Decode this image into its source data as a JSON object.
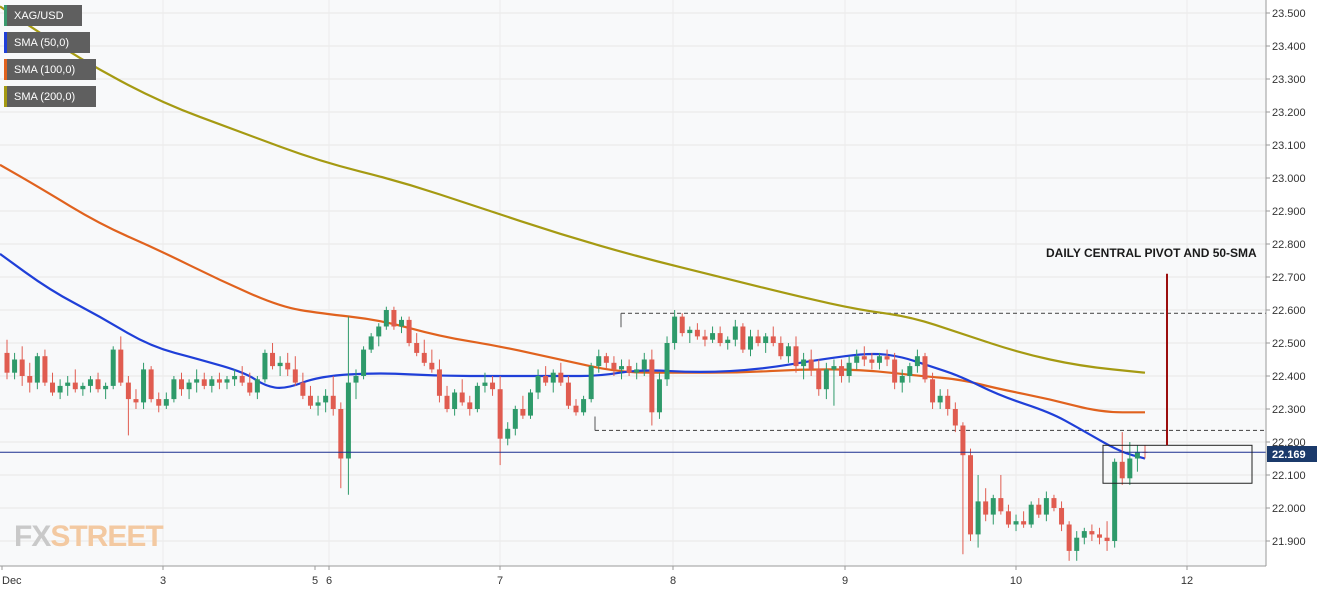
{
  "legend": {
    "symbol": {
      "label": "XAG/USD",
      "color": "#3a9a6e"
    },
    "sma50": {
      "label": "SMA (50,0)",
      "color": "#1f3fd8"
    },
    "sma100": {
      "label": "SMA (100,0)",
      "color": "#e0621e"
    },
    "sma200": {
      "label": "SMA (200,0)",
      "color": "#a59a12"
    }
  },
  "annotation": "DAILY CENTRAL PIVOT AND 50-SMA",
  "current_price": "22.169",
  "watermark": {
    "part1": "FX",
    "part2": "STREET"
  },
  "colors": {
    "up": "#2e9a6a",
    "down": "#e05c50",
    "price_line": "#1b2f8f",
    "price_tag": "#1b3a6b",
    "marker": "#9b0e0e"
  },
  "chart_data": {
    "type": "candlestick",
    "symbol": "XAG/USD",
    "timeframe": "1H",
    "x_ticks": [
      "Dec",
      "3",
      "5",
      "6",
      "7",
      "8",
      "9",
      "10",
      "12"
    ],
    "y_ticks": [
      "23.500",
      "23.400",
      "23.300",
      "23.200",
      "23.100",
      "23.000",
      "22.900",
      "22.800",
      "22.700",
      "22.600",
      "22.500",
      "22.400",
      "22.300",
      "22.200",
      "22.100",
      "22.000",
      "21.900"
    ],
    "ylim": [
      21.82,
      23.52
    ],
    "last_price": 22.169,
    "candles_ohlc": [
      [
        22.47,
        22.51,
        22.39,
        22.41
      ],
      [
        22.41,
        22.47,
        22.39,
        22.45
      ],
      [
        22.45,
        22.49,
        22.37,
        22.4
      ],
      [
        22.4,
        22.44,
        22.35,
        22.38
      ],
      [
        22.38,
        22.47,
        22.36,
        22.46
      ],
      [
        22.46,
        22.48,
        22.37,
        22.38
      ],
      [
        22.38,
        22.41,
        22.34,
        22.35
      ],
      [
        22.35,
        22.39,
        22.33,
        22.37
      ],
      [
        22.37,
        22.4,
        22.34,
        22.38
      ],
      [
        22.38,
        22.42,
        22.35,
        22.36
      ],
      [
        22.36,
        22.38,
        22.34,
        22.37
      ],
      [
        22.37,
        22.4,
        22.35,
        22.39
      ],
      [
        22.39,
        22.41,
        22.35,
        22.36
      ],
      [
        22.36,
        22.38,
        22.33,
        22.37
      ],
      [
        22.37,
        22.49,
        22.36,
        22.48
      ],
      [
        22.48,
        22.52,
        22.37,
        22.38
      ],
      [
        22.38,
        22.4,
        22.22,
        22.33
      ],
      [
        22.33,
        22.36,
        22.3,
        22.32
      ],
      [
        22.32,
        22.44,
        22.3,
        22.42
      ],
      [
        22.42,
        22.43,
        22.32,
        22.33
      ],
      [
        22.33,
        22.35,
        22.29,
        22.31
      ],
      [
        22.31,
        22.35,
        22.3,
        22.33
      ],
      [
        22.33,
        22.4,
        22.32,
        22.39
      ],
      [
        22.39,
        22.41,
        22.34,
        22.36
      ],
      [
        22.36,
        22.39,
        22.33,
        22.38
      ],
      [
        22.38,
        22.42,
        22.35,
        22.39
      ],
      [
        22.39,
        22.41,
        22.36,
        22.37
      ],
      [
        22.37,
        22.4,
        22.35,
        22.39
      ],
      [
        22.39,
        22.41,
        22.36,
        22.38
      ],
      [
        22.38,
        22.4,
        22.36,
        22.39
      ],
      [
        22.39,
        22.42,
        22.37,
        22.4
      ],
      [
        22.4,
        22.43,
        22.37,
        22.38
      ],
      [
        22.38,
        22.41,
        22.34,
        22.35
      ],
      [
        22.35,
        22.4,
        22.33,
        22.39
      ],
      [
        22.39,
        22.48,
        22.38,
        22.47
      ],
      [
        22.47,
        22.5,
        22.42,
        22.43
      ],
      [
        22.43,
        22.46,
        22.4,
        22.44
      ],
      [
        22.44,
        22.47,
        22.4,
        22.42
      ],
      [
        22.42,
        22.46,
        22.37,
        22.38
      ],
      [
        22.38,
        22.41,
        22.33,
        22.34
      ],
      [
        22.34,
        22.37,
        22.3,
        22.31
      ],
      [
        22.31,
        22.34,
        22.28,
        22.32
      ],
      [
        22.32,
        22.36,
        22.29,
        22.34
      ],
      [
        22.34,
        22.4,
        22.28,
        22.3
      ],
      [
        22.3,
        22.32,
        22.06,
        22.15
      ],
      [
        22.15,
        22.58,
        22.04,
        22.38
      ],
      [
        22.38,
        22.42,
        22.33,
        22.4
      ],
      [
        22.4,
        22.49,
        22.39,
        22.48
      ],
      [
        22.48,
        22.53,
        22.47,
        22.52
      ],
      [
        22.52,
        22.56,
        22.49,
        22.55
      ],
      [
        22.55,
        22.61,
        22.54,
        22.6
      ],
      [
        22.6,
        22.61,
        22.54,
        22.55
      ],
      [
        22.55,
        22.58,
        22.53,
        22.57
      ],
      [
        22.57,
        22.58,
        22.49,
        22.5
      ],
      [
        22.5,
        22.53,
        22.46,
        22.47
      ],
      [
        22.47,
        22.51,
        22.43,
        22.44
      ],
      [
        22.44,
        22.48,
        22.41,
        22.42
      ],
      [
        22.42,
        22.45,
        22.32,
        22.34
      ],
      [
        22.34,
        22.37,
        22.29,
        22.3
      ],
      [
        22.3,
        22.36,
        22.28,
        22.35
      ],
      [
        22.35,
        22.39,
        22.31,
        22.32
      ],
      [
        22.32,
        22.34,
        22.28,
        22.3
      ],
      [
        22.3,
        22.38,
        22.29,
        22.37
      ],
      [
        22.37,
        22.41,
        22.35,
        22.38
      ],
      [
        22.38,
        22.4,
        22.34,
        22.36
      ],
      [
        22.36,
        22.4,
        22.13,
        22.21
      ],
      [
        22.21,
        22.26,
        22.19,
        22.24
      ],
      [
        22.24,
        22.31,
        22.22,
        22.3
      ],
      [
        22.3,
        22.34,
        22.27,
        22.28
      ],
      [
        22.28,
        22.36,
        22.27,
        22.35
      ],
      [
        22.35,
        22.42,
        22.33,
        22.4
      ],
      [
        22.4,
        22.43,
        22.37,
        22.38
      ],
      [
        22.38,
        22.42,
        22.35,
        22.41
      ],
      [
        22.41,
        22.44,
        22.37,
        22.38
      ],
      [
        22.38,
        22.4,
        22.3,
        22.31
      ],
      [
        22.31,
        22.33,
        22.28,
        22.29
      ],
      [
        22.29,
        22.34,
        22.28,
        22.33
      ],
      [
        22.33,
        22.44,
        22.32,
        22.43
      ],
      [
        22.43,
        22.48,
        22.41,
        22.46
      ],
      [
        22.46,
        22.47,
        22.42,
        22.44
      ],
      [
        22.44,
        22.46,
        22.4,
        22.42
      ],
      [
        22.42,
        22.45,
        22.39,
        22.43
      ],
      [
        22.43,
        22.45,
        22.4,
        22.41
      ],
      [
        22.41,
        22.44,
        22.39,
        22.42
      ],
      [
        22.42,
        22.47,
        22.4,
        22.45
      ],
      [
        22.45,
        22.48,
        22.25,
        22.29
      ],
      [
        22.29,
        22.41,
        22.27,
        22.39
      ],
      [
        22.39,
        22.52,
        22.37,
        22.5
      ],
      [
        22.5,
        22.6,
        22.48,
        22.58
      ],
      [
        22.58,
        22.59,
        22.52,
        22.53
      ],
      [
        22.53,
        22.55,
        22.5,
        22.54
      ],
      [
        22.54,
        22.56,
        22.51,
        22.52
      ],
      [
        22.52,
        22.54,
        22.49,
        22.51
      ],
      [
        22.51,
        22.55,
        22.5,
        22.53
      ],
      [
        22.53,
        22.55,
        22.49,
        22.5
      ],
      [
        22.5,
        22.52,
        22.48,
        22.51
      ],
      [
        22.51,
        22.57,
        22.49,
        22.55
      ],
      [
        22.55,
        22.56,
        22.47,
        22.48
      ],
      [
        22.48,
        22.54,
        22.46,
        22.52
      ],
      [
        22.52,
        22.54,
        22.49,
        22.5
      ],
      [
        22.5,
        22.53,
        22.47,
        22.52
      ],
      [
        22.52,
        22.55,
        22.49,
        22.5
      ],
      [
        22.5,
        22.52,
        22.45,
        22.46
      ],
      [
        22.46,
        22.5,
        22.44,
        22.49
      ],
      [
        22.49,
        22.52,
        22.41,
        22.43
      ],
      [
        22.43,
        22.47,
        22.39,
        22.45
      ],
      [
        22.45,
        22.48,
        22.4,
        22.42
      ],
      [
        22.42,
        22.45,
        22.34,
        22.36
      ],
      [
        22.36,
        22.44,
        22.33,
        22.42
      ],
      [
        22.42,
        22.45,
        22.31,
        22.43
      ],
      [
        22.43,
        22.45,
        22.38,
        22.4
      ],
      [
        22.4,
        22.46,
        22.38,
        22.44
      ],
      [
        22.44,
        22.48,
        22.42,
        22.46
      ],
      [
        22.46,
        22.49,
        22.43,
        22.45
      ],
      [
        22.45,
        22.47,
        22.42,
        22.44
      ],
      [
        22.44,
        22.47,
        22.42,
        22.46
      ],
      [
        22.46,
        22.48,
        22.43,
        22.45
      ],
      [
        22.45,
        22.47,
        22.36,
        22.38
      ],
      [
        22.38,
        22.42,
        22.35,
        22.4
      ],
      [
        22.4,
        22.44,
        22.38,
        22.43
      ],
      [
        22.43,
        22.48,
        22.41,
        22.46
      ],
      [
        22.46,
        22.47,
        22.38,
        22.39
      ],
      [
        22.39,
        22.41,
        22.3,
        22.32
      ],
      [
        22.32,
        22.36,
        22.3,
        22.34
      ],
      [
        22.34,
        22.36,
        22.28,
        22.3
      ],
      [
        22.3,
        22.32,
        22.23,
        22.25
      ],
      [
        22.25,
        22.26,
        21.86,
        22.16
      ],
      [
        22.16,
        22.18,
        21.9,
        21.92
      ],
      [
        21.92,
        22.1,
        21.88,
        22.02
      ],
      [
        22.02,
        22.06,
        21.96,
        21.98
      ],
      [
        21.98,
        22.04,
        21.95,
        22.03
      ],
      [
        22.03,
        22.1,
        21.98,
        21.99
      ],
      [
        21.99,
        22.01,
        21.94,
        21.95
      ],
      [
        21.95,
        21.98,
        21.93,
        21.96
      ],
      [
        21.96,
        21.99,
        21.94,
        21.95
      ],
      [
        21.95,
        22.02,
        21.94,
        22.01
      ],
      [
        22.01,
        22.03,
        21.97,
        21.98
      ],
      [
        21.98,
        22.05,
        21.96,
        22.03
      ],
      [
        22.03,
        22.04,
        21.99,
        22.0
      ],
      [
        22.0,
        22.02,
        21.93,
        21.95
      ],
      [
        21.95,
        21.96,
        21.84,
        21.87
      ],
      [
        21.87,
        21.93,
        21.84,
        21.91
      ],
      [
        21.91,
        21.94,
        21.89,
        21.93
      ],
      [
        21.93,
        21.95,
        21.9,
        21.92
      ],
      [
        21.92,
        21.94,
        21.89,
        21.91
      ],
      [
        21.91,
        21.96,
        21.87,
        21.9
      ],
      [
        21.9,
        22.15,
        21.88,
        22.14
      ],
      [
        22.14,
        22.23,
        22.07,
        22.09
      ],
      [
        22.09,
        22.2,
        22.07,
        22.15
      ],
      [
        22.15,
        22.19,
        22.11,
        22.17
      ],
      [
        22.17,
        22.19,
        22.15,
        22.169
      ]
    ],
    "sma50": [
      [
        0,
        22.77
      ],
      [
        50,
        22.66
      ],
      [
        100,
        22.58
      ],
      [
        150,
        22.49
      ],
      [
        200,
        22.45
      ],
      [
        245,
        22.41
      ],
      [
        265,
        22.37
      ],
      [
        285,
        22.36
      ],
      [
        320,
        22.4
      ],
      [
        380,
        22.41
      ],
      [
        440,
        22.4
      ],
      [
        500,
        22.4
      ],
      [
        560,
        22.4
      ],
      [
        600,
        22.4
      ],
      [
        640,
        22.42
      ],
      [
        700,
        22.41
      ],
      [
        760,
        22.42
      ],
      [
        820,
        22.45
      ],
      [
        870,
        22.47
      ],
      [
        900,
        22.46
      ],
      [
        930,
        22.43
      ],
      [
        960,
        22.4
      ],
      [
        1000,
        22.34
      ],
      [
        1050,
        22.29
      ],
      [
        1080,
        22.24
      ],
      [
        1120,
        22.17
      ],
      [
        1145,
        22.15
      ]
    ],
    "sma100": [
      [
        0,
        23.04
      ],
      [
        40,
        22.97
      ],
      [
        100,
        22.86
      ],
      [
        160,
        22.78
      ],
      [
        220,
        22.69
      ],
      [
        280,
        22.61
      ],
      [
        320,
        22.59
      ],
      [
        380,
        22.57
      ],
      [
        440,
        22.52
      ],
      [
        500,
        22.49
      ],
      [
        560,
        22.45
      ],
      [
        620,
        22.41
      ],
      [
        680,
        22.41
      ],
      [
        740,
        22.41
      ],
      [
        800,
        22.42
      ],
      [
        860,
        22.42
      ],
      [
        920,
        22.4
      ],
      [
        960,
        22.39
      ],
      [
        1000,
        22.36
      ],
      [
        1050,
        22.33
      ],
      [
        1100,
        22.29
      ],
      [
        1145,
        22.29
      ]
    ],
    "sma200": [
      [
        0,
        23.52
      ],
      [
        80,
        23.36
      ],
      [
        160,
        23.23
      ],
      [
        240,
        23.14
      ],
      [
        320,
        23.05
      ],
      [
        400,
        22.99
      ],
      [
        480,
        22.91
      ],
      [
        560,
        22.83
      ],
      [
        640,
        22.76
      ],
      [
        720,
        22.7
      ],
      [
        800,
        22.64
      ],
      [
        860,
        22.6
      ],
      [
        910,
        22.58
      ],
      [
        960,
        22.53
      ],
      [
        1020,
        22.47
      ],
      [
        1080,
        22.43
      ],
      [
        1145,
        22.41
      ]
    ],
    "levels": [
      {
        "from_x": 621,
        "to_x": 1266,
        "value": 22.59
      },
      {
        "from_x": 595,
        "to_x": 1266,
        "value": 22.235
      }
    ],
    "current_price_line": 22.169,
    "highlight_box": {
      "x1": 1103,
      "x2": 1252,
      "top": 22.19,
      "bottom": 22.075
    },
    "marker_line": {
      "x": 1167,
      "top": 22.71,
      "bottom": 22.19
    }
  }
}
